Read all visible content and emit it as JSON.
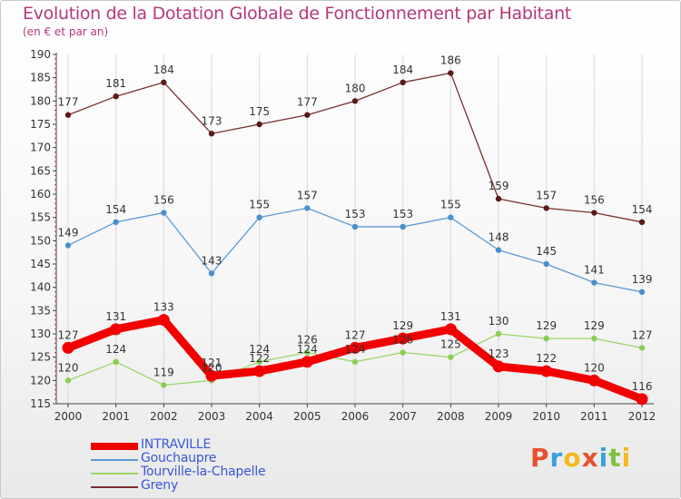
{
  "header": {
    "title": "Evolution de la Dotation Globale de Fonctionnement par Habitant",
    "subtitle": "(en € et par an)"
  },
  "logo": {
    "text": "Proxiti",
    "colors": [
      "#e8502e",
      "#3aa0dd",
      "#f5b91e",
      "#e8502e",
      "#3aa0dd",
      "#7fbf3f",
      "#f5b91e"
    ]
  },
  "chart_data": {
    "type": "line",
    "title": "Evolution de la Dotation Globale de Fonctionnement par Habitant",
    "subtitle": "(en € et par an)",
    "xlabel": "",
    "ylabel": "",
    "categories": [
      "2000",
      "2001",
      "2002",
      "2003",
      "2004",
      "2005",
      "2006",
      "2007",
      "2008",
      "2009",
      "2010",
      "2011",
      "2012"
    ],
    "ylim": [
      115,
      190
    ],
    "yticks": [
      115,
      120,
      125,
      130,
      135,
      140,
      145,
      150,
      155,
      160,
      165,
      170,
      175,
      180,
      185,
      190
    ],
    "grid": "vertical",
    "legend_position": "bottom-left",
    "series": [
      {
        "name": "INTRAVILLE",
        "color": "#f20000",
        "marker": "#f20000",
        "thick": true,
        "values": [
          127,
          131,
          133,
          121,
          122,
          124,
          127,
          129,
          131,
          123,
          122,
          120,
          116
        ]
      },
      {
        "name": "Gouchaupre",
        "color": "#5b9bd5",
        "marker": "#4a8fcc",
        "thick": false,
        "values": [
          149,
          154,
          156,
          143,
          155,
          157,
          153,
          153,
          155,
          148,
          145,
          141,
          139
        ]
      },
      {
        "name": "Tourville-la-Chapelle",
        "color": "#9ad66b",
        "marker": "#8ccc56",
        "thick": false,
        "values": [
          120,
          124,
          119,
          120,
          124,
          126,
          124,
          126,
          125,
          130,
          129,
          129,
          127
        ]
      },
      {
        "name": "Greny",
        "color": "#7a2f2f",
        "marker": "#5a1a1a",
        "thick": false,
        "values": [
          177,
          181,
          184,
          173,
          175,
          177,
          180,
          184,
          186,
          159,
          157,
          156,
          154
        ]
      }
    ]
  }
}
